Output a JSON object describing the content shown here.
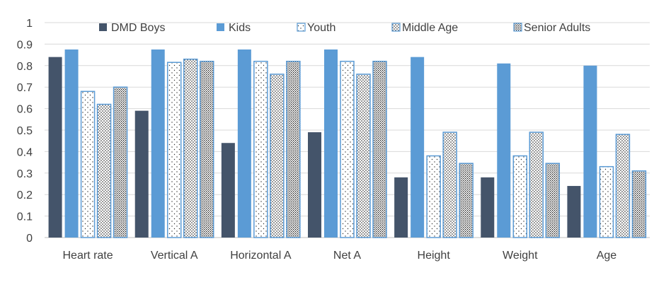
{
  "chart_data": {
    "type": "bar",
    "title": "",
    "xlabel": "",
    "ylabel": "",
    "ylim": [
      0,
      1
    ],
    "yticks": [
      0,
      0.1,
      0.2,
      0.3,
      0.4,
      0.5,
      0.6,
      0.7,
      0.8,
      0.9,
      1
    ],
    "ytick_labels": [
      "0",
      "0.1",
      "0.2",
      "0.3",
      "0.4",
      "0.5",
      "0.6",
      "0.7",
      "0.8",
      "0.9",
      "1"
    ],
    "grid": true,
    "legend_position": "top",
    "categories": [
      "Heart rate",
      "Vertical A",
      "Horizontal A",
      "Net A",
      "Height",
      "Weight",
      "Age"
    ],
    "series": [
      {
        "name": "DMD Boys",
        "color": "#44546a",
        "pattern": "solid",
        "values": [
          0.84,
          0.59,
          0.44,
          0.49,
          0.28,
          0.28,
          0.24
        ]
      },
      {
        "name": "Kids",
        "color": "#5b9bd5",
        "pattern": "solid",
        "values": [
          0.875,
          0.875,
          0.875,
          0.875,
          0.84,
          0.81,
          0.8
        ]
      },
      {
        "name": "Youth",
        "color": "#5b9bd5",
        "pattern": "sparse-dots",
        "values": [
          0.68,
          0.815,
          0.82,
          0.82,
          0.38,
          0.38,
          0.33
        ]
      },
      {
        "name": "Middle Age",
        "color": "#5b9bd5",
        "pattern": "dots",
        "values": [
          0.62,
          0.83,
          0.76,
          0.76,
          0.49,
          0.49,
          0.48
        ]
      },
      {
        "name": "Senior Adults",
        "color": "#5b9bd5",
        "pattern": "dense-dots",
        "values": [
          0.7,
          0.82,
          0.82,
          0.82,
          0.345,
          0.345,
          0.31
        ]
      }
    ]
  }
}
